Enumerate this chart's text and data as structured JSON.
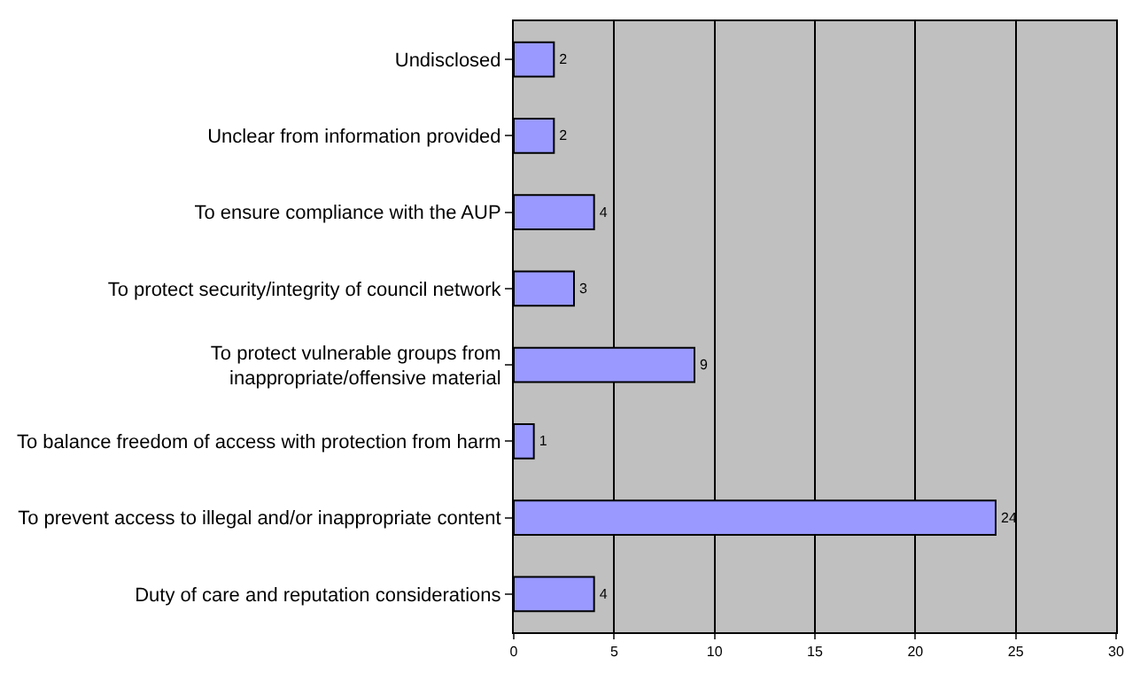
{
  "chart_data": {
    "type": "bar",
    "orientation": "horizontal",
    "categories": [
      "Undisclosed",
      "Unclear from information provided",
      "To ensure compliance with the AUP",
      "To protect security/integrity of council network",
      "To protect vulnerable groups from\ninappropriate/offensive material",
      "To balance freedom of access with protection from harm",
      "To prevent access to illegal and/or inappropriate content",
      "Duty of care and reputation considerations"
    ],
    "values": [
      2,
      2,
      4,
      3,
      9,
      1,
      24,
      4
    ],
    "color": "#9999ff",
    "xlim": [
      0,
      30
    ],
    "xticks": [
      0,
      5,
      10,
      15,
      20,
      25,
      30
    ],
    "grid": "x",
    "data_labels": true
  }
}
